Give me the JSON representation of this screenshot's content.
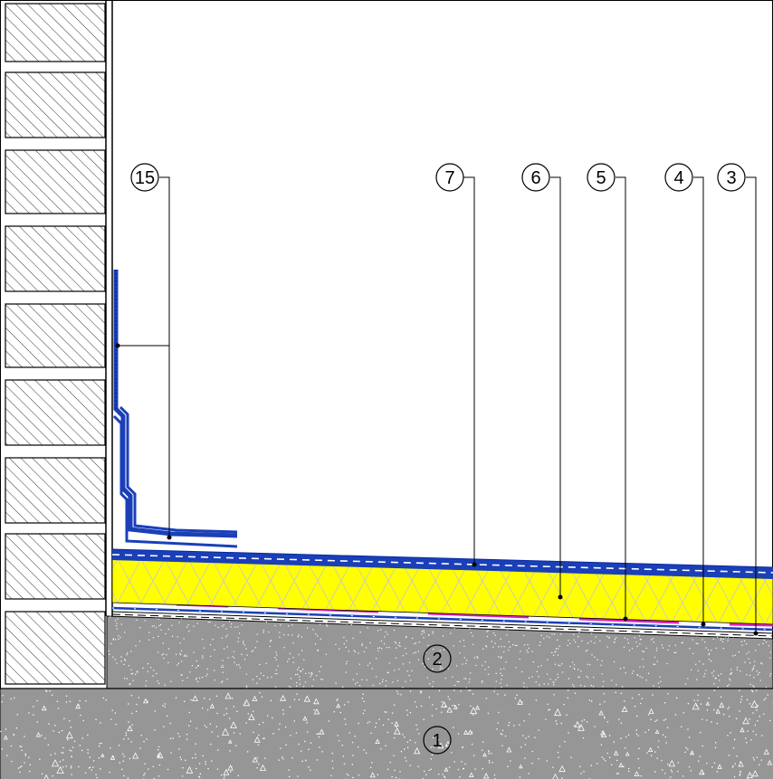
{
  "callouts": {
    "c15": "15",
    "c7": "7",
    "c6": "6",
    "c5": "5",
    "c4": "4",
    "c3": "3",
    "c2": "2",
    "c1": "1"
  },
  "colors": {
    "membrane": "#1a3fb8",
    "membrane_dark": "#0a2a9a",
    "insulation": "#ffff00",
    "vapour_strip": "#e020c0",
    "concrete": "#969696",
    "concrete_speckle": "#ffffff",
    "brick_hatch": "#000000",
    "line": "#000000"
  }
}
